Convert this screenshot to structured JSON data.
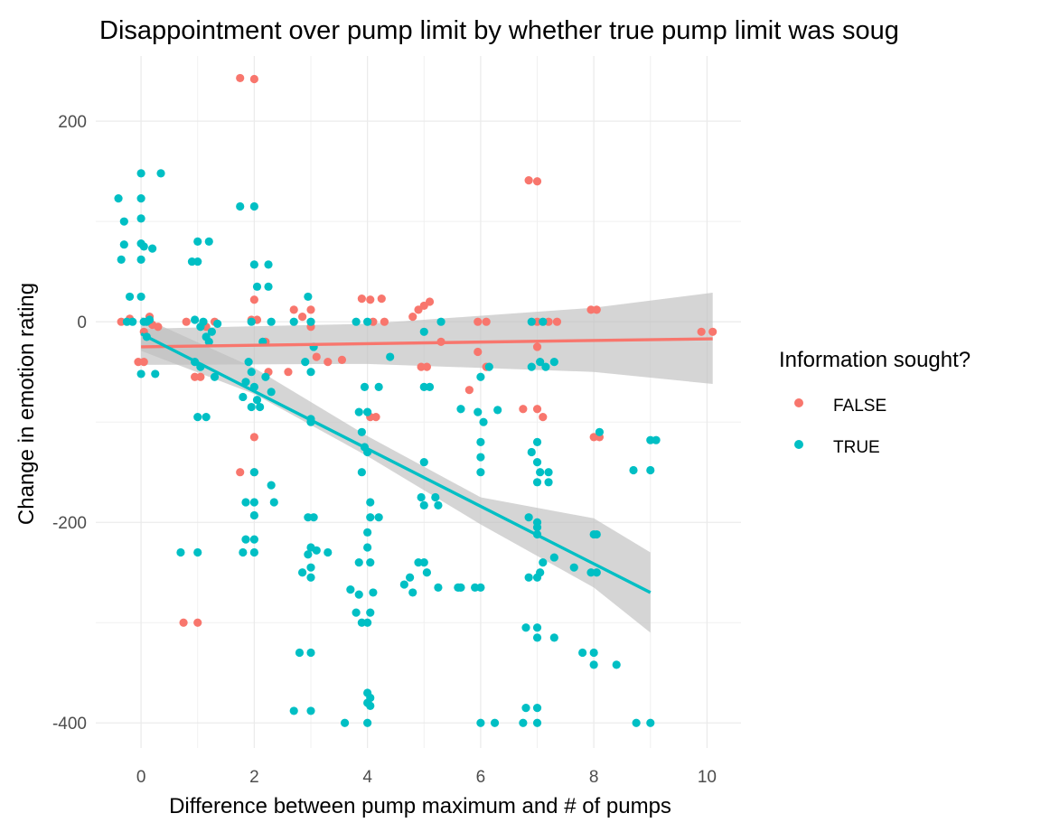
{
  "chart_data": {
    "type": "scatter",
    "title": "Disappointment over pump limit by whether true pump limit was soug",
    "xlabel": "Difference between pump maximum and # of pumps",
    "ylabel": "Change in emotion rating",
    "xlim": [
      -0.8,
      10.6
    ],
    "ylim": [
      -425,
      265
    ],
    "x_ticks": [
      0,
      2,
      4,
      6,
      8,
      10
    ],
    "y_ticks": [
      200,
      0,
      -200,
      -400
    ],
    "grid": true,
    "legend": {
      "title": "Information sought?",
      "placement": "right",
      "entries": [
        "FALSE",
        "TRUE"
      ]
    },
    "colors": {
      "FALSE": "#F8766D",
      "TRUE": "#00BFC4",
      "ribbon": "#BEBEBE"
    },
    "series": [
      {
        "name": "FALSE",
        "color": "#F8766D",
        "points": [
          [
            1.75,
            243
          ],
          [
            2.0,
            242
          ],
          [
            6.85,
            141
          ],
          [
            7.0,
            140
          ],
          [
            -0.35,
            0
          ],
          [
            -0.2,
            3
          ],
          [
            0.05,
            -10
          ],
          [
            0.15,
            5
          ],
          [
            0.2,
            -3
          ],
          [
            -0.05,
            -40
          ],
          [
            0.05,
            -40
          ],
          [
            0.3,
            -5
          ],
          [
            0.8,
            0
          ],
          [
            0.95,
            -55
          ],
          [
            1.05,
            -55
          ],
          [
            1.15,
            -5
          ],
          [
            1.3,
            0
          ],
          [
            1.75,
            -150
          ],
          [
            2.0,
            -150
          ],
          [
            2.0,
            -115
          ],
          [
            1.95,
            2
          ],
          [
            2.05,
            2
          ],
          [
            2.0,
            22
          ],
          [
            2.2,
            -20
          ],
          [
            2.25,
            -50
          ],
          [
            2.6,
            -50
          ],
          [
            2.7,
            12
          ],
          [
            2.85,
            5
          ],
          [
            3.0,
            12
          ],
          [
            3.0,
            -5
          ],
          [
            3.1,
            -35
          ],
          [
            3.3,
            -40
          ],
          [
            3.55,
            -38
          ],
          [
            3.9,
            23
          ],
          [
            4.05,
            22
          ],
          [
            4.25,
            23
          ],
          [
            4.1,
            0
          ],
          [
            4.3,
            0
          ],
          [
            4.05,
            -95
          ],
          [
            4.15,
            -95
          ],
          [
            4.8,
            5
          ],
          [
            4.9,
            12
          ],
          [
            5.0,
            16
          ],
          [
            5.1,
            20
          ],
          [
            4.95,
            -45
          ],
          [
            5.05,
            -45
          ],
          [
            5.3,
            -20
          ],
          [
            5.8,
            -68
          ],
          [
            5.95,
            -30
          ],
          [
            5.95,
            0
          ],
          [
            6.1,
            0
          ],
          [
            6.1,
            -45
          ],
          [
            6.75,
            -87
          ],
          [
            7.0,
            -87
          ],
          [
            7.1,
            -95
          ],
          [
            7.0,
            -25
          ],
          [
            7.0,
            0
          ],
          [
            7.2,
            0
          ],
          [
            7.35,
            0
          ],
          [
            7.95,
            12
          ],
          [
            8.05,
            12
          ],
          [
            8.1,
            -115
          ],
          [
            8.0,
            -115
          ],
          [
            9.9,
            -10
          ],
          [
            10.1,
            -10
          ],
          [
            0.75,
            -300
          ],
          [
            1.0,
            -300
          ]
        ]
      },
      {
        "name": "TRUE",
        "color": "#00BFC4",
        "points": [
          [
            -0.4,
            123
          ],
          [
            -0.3,
            100
          ],
          [
            -0.3,
            77
          ],
          [
            -0.35,
            62
          ],
          [
            -0.2,
            25
          ],
          [
            -0.15,
            0
          ],
          [
            -0.25,
            0
          ],
          [
            0.0,
            148
          ],
          [
            0.0,
            123
          ],
          [
            0.0,
            103
          ],
          [
            0.0,
            78
          ],
          [
            0.05,
            75
          ],
          [
            0.0,
            62
          ],
          [
            0.0,
            25
          ],
          [
            0.05,
            0
          ],
          [
            0.1,
            0
          ],
          [
            0.15,
            2
          ],
          [
            0.1,
            -15
          ],
          [
            0.0,
            -52
          ],
          [
            0.25,
            -52
          ],
          [
            0.35,
            148
          ],
          [
            0.2,
            73
          ],
          [
            0.9,
            60
          ],
          [
            1.0,
            60
          ],
          [
            1.0,
            80
          ],
          [
            1.2,
            80
          ],
          [
            0.95,
            2
          ],
          [
            1.05,
            -5
          ],
          [
            1.1,
            0
          ],
          [
            1.15,
            -15
          ],
          [
            1.25,
            -10
          ],
          [
            1.35,
            -2
          ],
          [
            1.0,
            -95
          ],
          [
            1.15,
            -95
          ],
          [
            0.95,
            -40
          ],
          [
            1.2,
            -20
          ],
          [
            1.3,
            -55
          ],
          [
            1.05,
            -45
          ],
          [
            0.7,
            -230
          ],
          [
            1.0,
            -230
          ],
          [
            1.75,
            115
          ],
          [
            2.0,
            115
          ],
          [
            2.0,
            57
          ],
          [
            2.25,
            57
          ],
          [
            2.05,
            35
          ],
          [
            2.25,
            35
          ],
          [
            1.95,
            0
          ],
          [
            2.15,
            -20
          ],
          [
            1.9,
            -40
          ],
          [
            1.95,
            -50
          ],
          [
            2.0,
            -65
          ],
          [
            2.05,
            -78
          ],
          [
            1.95,
            -85
          ],
          [
            2.1,
            -85
          ],
          [
            1.8,
            -75
          ],
          [
            1.85,
            -60
          ],
          [
            2.2,
            -55
          ],
          [
            2.3,
            -70
          ],
          [
            2.0,
            -150
          ],
          [
            2.0,
            -180
          ],
          [
            2.0,
            -193
          ],
          [
            1.85,
            -180
          ],
          [
            1.85,
            -217
          ],
          [
            2.0,
            -217
          ],
          [
            1.8,
            -230
          ],
          [
            2.0,
            -230
          ],
          [
            2.3,
            -163
          ],
          [
            2.35,
            -180
          ],
          [
            2.3,
            0
          ],
          [
            2.7,
            0
          ],
          [
            3.0,
            0
          ],
          [
            2.9,
            -40
          ],
          [
            3.0,
            -50
          ],
          [
            3.05,
            -25
          ],
          [
            2.95,
            25
          ],
          [
            3.0,
            -97
          ],
          [
            3.0,
            -100
          ],
          [
            2.95,
            -195
          ],
          [
            3.05,
            -195
          ],
          [
            3.0,
            -225
          ],
          [
            3.1,
            -228
          ],
          [
            2.95,
            -232
          ],
          [
            3.3,
            -230
          ],
          [
            2.85,
            -250
          ],
          [
            3.0,
            -255
          ],
          [
            3.0,
            -245
          ],
          [
            2.8,
            -330
          ],
          [
            3.0,
            -330
          ],
          [
            2.7,
            -388
          ],
          [
            3.0,
            -388
          ],
          [
            3.7,
            -267
          ],
          [
            3.8,
            -290
          ],
          [
            3.85,
            -272
          ],
          [
            3.9,
            -300
          ],
          [
            4.0,
            -300
          ],
          [
            3.85,
            -240
          ],
          [
            4.05,
            -240
          ],
          [
            3.9,
            -150
          ],
          [
            4.0,
            -130
          ],
          [
            3.85,
            -90
          ],
          [
            4.0,
            -90
          ],
          [
            3.95,
            -65
          ],
          [
            4.2,
            -65
          ],
          [
            3.9,
            -110
          ],
          [
            3.95,
            -125
          ],
          [
            4.05,
            -180
          ],
          [
            4.05,
            -195
          ],
          [
            4.2,
            -195
          ],
          [
            4.0,
            -210
          ],
          [
            4.0,
            -225
          ],
          [
            4.1,
            -270
          ],
          [
            4.05,
            -290
          ],
          [
            3.6,
            -400
          ],
          [
            4.0,
            -400
          ],
          [
            4.0,
            -370
          ],
          [
            4.05,
            -375
          ],
          [
            4.0,
            -380
          ],
          [
            4.05,
            -383
          ],
          [
            3.8,
            0
          ],
          [
            4.0,
            0
          ],
          [
            4.4,
            -35
          ],
          [
            4.65,
            -262
          ],
          [
            4.75,
            -255
          ],
          [
            4.9,
            -240
          ],
          [
            5.0,
            -240
          ],
          [
            5.05,
            -250
          ],
          [
            4.8,
            -270
          ],
          [
            4.95,
            -175
          ],
          [
            5.0,
            -183
          ],
          [
            5.2,
            -175
          ],
          [
            5.25,
            -183
          ],
          [
            5.0,
            -140
          ],
          [
            5.0,
            -65
          ],
          [
            5.1,
            -65
          ],
          [
            5.3,
            0
          ],
          [
            5.0,
            -10
          ],
          [
            5.25,
            -265
          ],
          [
            5.6,
            -265
          ],
          [
            5.65,
            -265
          ],
          [
            5.9,
            -265
          ],
          [
            6.0,
            -265
          ],
          [
            5.65,
            -87
          ],
          [
            5.95,
            -90
          ],
          [
            6.05,
            -100
          ],
          [
            6.3,
            -88
          ],
          [
            6.0,
            -55
          ],
          [
            6.15,
            -45
          ],
          [
            6.0,
            -120
          ],
          [
            6.0,
            -135
          ],
          [
            6.0,
            -150
          ],
          [
            6.0,
            -400
          ],
          [
            6.25,
            -400
          ],
          [
            6.8,
            -385
          ],
          [
            7.0,
            -385
          ],
          [
            6.75,
            -400
          ],
          [
            7.0,
            -400
          ],
          [
            6.8,
            -305
          ],
          [
            7.0,
            -305
          ],
          [
            7.0,
            -315
          ],
          [
            7.3,
            -315
          ],
          [
            6.85,
            -255
          ],
          [
            7.0,
            -255
          ],
          [
            7.05,
            -250
          ],
          [
            7.1,
            -240
          ],
          [
            7.3,
            -235
          ],
          [
            7.0,
            -200
          ],
          [
            7.0,
            -212
          ],
          [
            7.65,
            -245
          ],
          [
            6.9,
            -130
          ],
          [
            7.0,
            -120
          ],
          [
            7.0,
            -140
          ],
          [
            7.05,
            -150
          ],
          [
            7.2,
            -150
          ],
          [
            7.0,
            -160
          ],
          [
            7.2,
            -160
          ],
          [
            6.9,
            -45
          ],
          [
            7.05,
            -40
          ],
          [
            7.15,
            -45
          ],
          [
            7.3,
            -40
          ],
          [
            6.85,
            -195
          ],
          [
            7.0,
            -205
          ],
          [
            6.9,
            0
          ],
          [
            7.1,
            0
          ],
          [
            7.8,
            -330
          ],
          [
            8.0,
            -330
          ],
          [
            8.0,
            -342
          ],
          [
            8.4,
            -342
          ],
          [
            7.95,
            -250
          ],
          [
            8.05,
            -250
          ],
          [
            8.0,
            -212
          ],
          [
            8.05,
            -212
          ],
          [
            8.1,
            -110
          ],
          [
            8.7,
            -148
          ],
          [
            9.0,
            -148
          ],
          [
            9.0,
            -118
          ],
          [
            9.1,
            -118
          ],
          [
            8.75,
            -400
          ],
          [
            9.0,
            -400
          ]
        ]
      }
    ],
    "fits": [
      {
        "name": "FALSE",
        "x": [
          0,
          10.1
        ],
        "y": [
          -25,
          -17
        ],
        "lower": [
          [
            0,
            -43
          ],
          [
            4,
            -42
          ],
          [
            8,
            -50
          ],
          [
            10.1,
            -62
          ]
        ],
        "upper": [
          [
            0,
            -7
          ],
          [
            4,
            -2
          ],
          [
            8,
            14
          ],
          [
            10.1,
            29
          ]
        ]
      },
      {
        "name": "TRUE",
        "x": [
          0,
          9
        ],
        "y": [
          -12,
          -270
        ],
        "lower": [
          [
            0,
            -29
          ],
          [
            2,
            -72
          ],
          [
            4,
            -134
          ],
          [
            6,
            -202
          ],
          [
            8,
            -265
          ],
          [
            9,
            -310
          ]
        ],
        "upper": [
          [
            0,
            5
          ],
          [
            2,
            -46
          ],
          [
            4,
            -114
          ],
          [
            6,
            -175
          ],
          [
            8,
            -196
          ],
          [
            9,
            -230
          ]
        ]
      }
    ]
  }
}
